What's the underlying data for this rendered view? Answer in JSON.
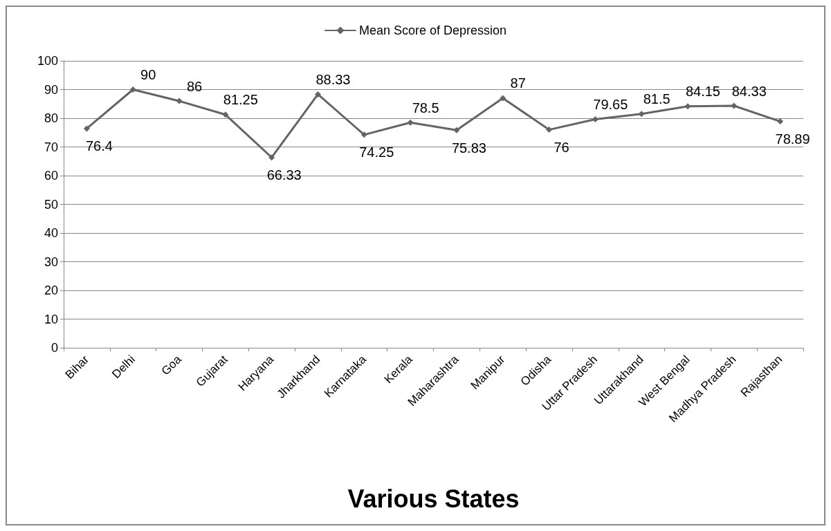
{
  "chart_data": {
    "type": "line",
    "xlabel": "Various States",
    "categories": [
      "Bihar",
      "Delhi",
      "Goa",
      "Gujarat",
      "Haryana",
      "Jharkhand",
      "Karnataka",
      "Kerala",
      "Maharashtra",
      "Manipur",
      "Odisha",
      "Uttar Pradesh",
      "Uttarakhand",
      "West Bengal",
      "Madhya Pradesh",
      "Rajasthan"
    ],
    "series": [
      {
        "name": "Mean Score of Depression",
        "color": "#646464",
        "values": [
          76.4,
          90,
          86,
          81.25,
          66.33,
          88.33,
          74.25,
          78.5,
          75.83,
          87,
          76,
          79.65,
          81.5,
          84.15,
          84.33,
          78.89
        ]
      }
    ],
    "ylim": [
      0,
      100
    ],
    "yticks": [
      0,
      10,
      20,
      30,
      40,
      50,
      60,
      70,
      80,
      90,
      100
    ],
    "grid": "y",
    "legend": "top",
    "marker": "diamond",
    "line_style": "solid",
    "data_labels": true
  }
}
